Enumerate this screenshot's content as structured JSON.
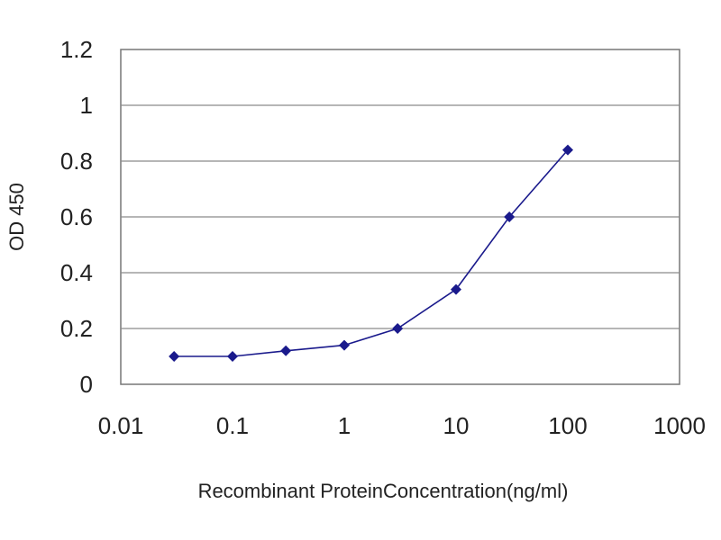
{
  "chart_data": {
    "type": "scatter",
    "title": "",
    "xlabel": "Recombinant ProteinConcentration(ng/ml)",
    "ylabel": "OD 450",
    "xscale": "log",
    "xlim": [
      0.01,
      1000
    ],
    "ylim": [
      0,
      1.2
    ],
    "grid": true,
    "legend": "none",
    "x_ticks": [
      "0.01",
      "0.1",
      "1",
      "10",
      "100",
      "1000"
    ],
    "y_ticks": [
      "0",
      "0.2",
      "0.4",
      "0.6",
      "0.8",
      "1",
      "1.2"
    ],
    "series": [
      {
        "x": [
          0.03,
          0.1,
          0.3,
          1,
          3,
          10,
          30,
          100
        ],
        "y": [
          0.1,
          0.1,
          0.12,
          0.14,
          0.2,
          0.34,
          0.6,
          0.84
        ],
        "color": "#1a1a8c",
        "marker": "diamond",
        "line": true
      }
    ]
  }
}
